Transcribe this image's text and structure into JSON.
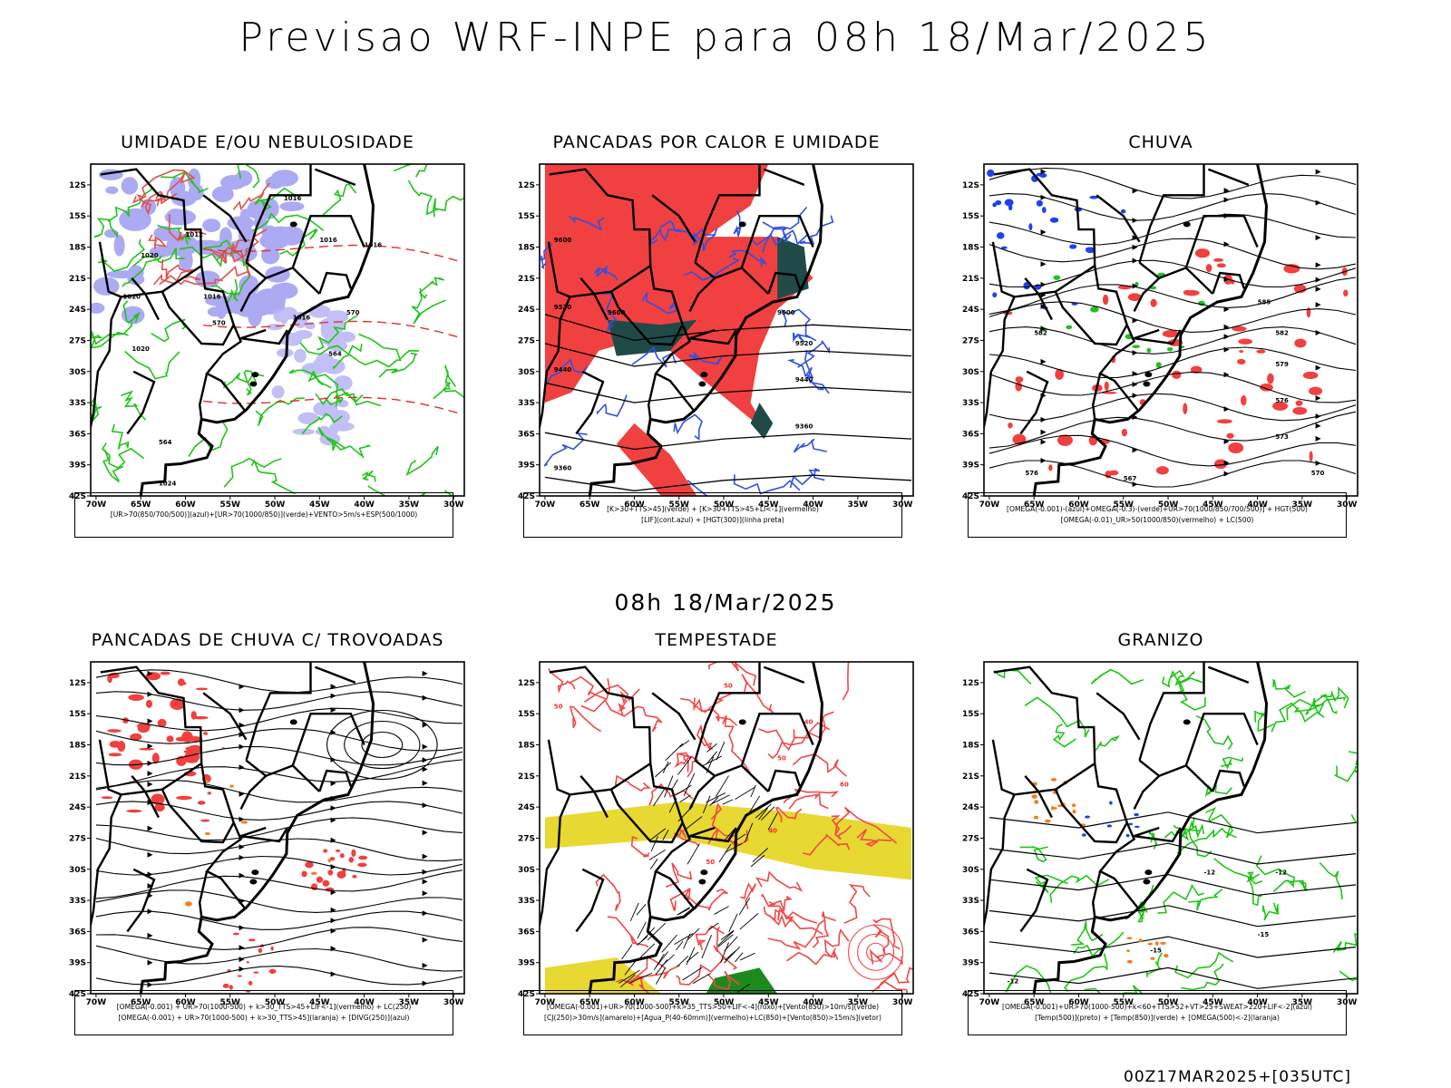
{
  "title": "Previsao WRF-INPE  para 08h 18/Mar/2025",
  "mid_title": "08h 18/Mar/2025",
  "run_info": "00Z17MAR2025+[035UTC]",
  "axes": {
    "lat_labels": [
      "12S",
      "15S",
      "18S",
      "21S",
      "24S",
      "27S",
      "30S",
      "33S",
      "36S",
      "39S",
      "42S"
    ],
    "lon_labels": [
      "70W",
      "65W",
      "60W",
      "55W",
      "50W",
      "45W",
      "40W",
      "35W",
      "30W"
    ]
  },
  "panels": [
    {
      "title": "UMIDADE E/OU NEBULOSIDADE",
      "legend": [
        "[UR>70(850/700/500)](azul)+[UR>70(1000/850)](verde)+VENTO>5m/s+ESP(500/1000)"
      ],
      "contour_labels": [
        "1016",
        "1016",
        "1016",
        "1012",
        "1020",
        "1020",
        "1016",
        "1016",
        "1020",
        "570",
        "570",
        "564",
        "564",
        "1024"
      ]
    },
    {
      "title": "PANCADAS POR CALOR E UMIDADE",
      "legend": [
        "[K>30+TTS>45](verde) + [K>30+TTS>45+LI<-1](vermelho)",
        "[LIF](cont.azul) + [HGT(300)](linha preta)"
      ],
      "contour_labels": [
        "9600",
        "9600",
        "9600",
        "9520",
        "9520",
        "9440",
        "9440",
        "9360",
        "9360"
      ]
    },
    {
      "title": "CHUVA",
      "legend": [
        "[OMEGA(-0.001)-(azul)+OMEGA(-0.3)-(verde)+UR>70(1000/850/700/500)] + HGT(500)",
        "[OMEGA(-0.01)_UR>50(1000/850)(vermelho) + LC(500)"
      ],
      "contour_labels": [
        "585",
        "582",
        "582",
        "579",
        "576",
        "573",
        "570",
        "576",
        "567"
      ]
    },
    {
      "title": "PANCADAS DE CHUVA C/ TROVOADAS",
      "legend": [
        "[OMEGA(-0.001) + UR>70(1000-500) + k>30_TTS>45+LIF<-1](vermelho) + LC(250)",
        "[OMEGA(-0.001) + UR>70(1000-500) + k>30_TTS>45](laranja) + [DIVG(250)](azul)"
      ],
      "contour_labels": []
    },
    {
      "title": "TEMPESTADE",
      "legend": [
        "[OMEGA(-0.001)+UR>70(1000-500)+k>35_TTS>50+LIF<-4](roxo)+[Vento(850)>10m/s](verde)",
        "[CJ(250)>30m/s](amarelo)+[Agua_P(40-60mm)](vermelho)+LC(850)+[Vento(850)>15m/s](vetor)"
      ],
      "contour_labels": [
        "50",
        "50",
        "40",
        "50",
        "60",
        "40",
        "50"
      ]
    },
    {
      "title": "GRANIZO",
      "legend": [
        "[OMEGA(-0.001)+UR>70(1000-500)+k<60+TTS>52+VT>25+SWEAT>220+LIF<-2](azul)",
        "[Temp(500)](preto) + [Temp(850)](verde) + [OMEGA(500)<-2](laranja)"
      ],
      "contour_labels": [
        "-12",
        "-12",
        "-15",
        "-15",
        "-12"
      ]
    }
  ]
}
